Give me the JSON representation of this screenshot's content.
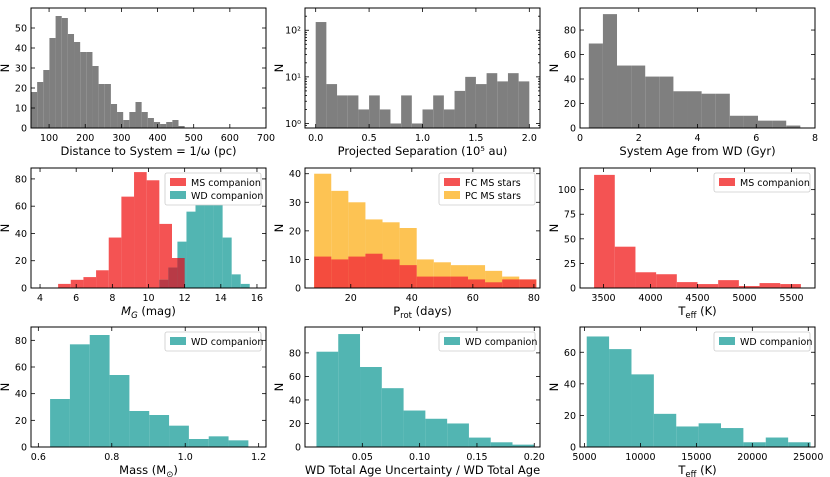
{
  "colors": {
    "gray": "#7f7f7f",
    "ms": "#f23b3b",
    "wd": "#3aaba7",
    "pc": "#fdbb3b",
    "overlap": "#b83a46"
  },
  "chart_data": [
    {
      "type": "bar",
      "xlabel": "Distance to System = 1/ω (pc)",
      "ylabel": "N",
      "xlim": [
        50,
        700
      ],
      "ylim": [
        0,
        60
      ],
      "xticks": [
        100,
        200,
        300,
        400,
        500,
        600,
        700
      ],
      "yticks": [
        0,
        10,
        20,
        30,
        40,
        50
      ],
      "yscale": "linear",
      "series": [
        {
          "color_key": "gray",
          "bin_edges": [
            50,
            67,
            84,
            101,
            118,
            135,
            152,
            169,
            186,
            203,
            220,
            237,
            254,
            271,
            288,
            305,
            322,
            339,
            356,
            373,
            390,
            407,
            424,
            441,
            458,
            475,
            492
          ],
          "values": [
            18,
            23,
            29,
            45,
            56,
            55,
            47,
            43,
            38,
            38,
            31,
            22,
            22,
            12,
            8,
            4,
            8,
            13,
            8,
            5,
            3,
            2,
            3,
            4,
            1,
            0
          ]
        }
      ],
      "legend": []
    },
    {
      "type": "bar",
      "xlabel": "Projected Separation (10⁵ au)",
      "ylabel": "N",
      "xlim": [
        -0.1,
        2.1
      ],
      "ylim": [
        0.8,
        300
      ],
      "xticks": [
        0.0,
        0.5,
        1.0,
        1.5,
        2.0
      ],
      "xtick_labels": [
        "0.0",
        "0.5",
        "1.0",
        "1.5",
        "2.0"
      ],
      "yticks": [
        1,
        10,
        100
      ],
      "ytick_labels": [
        "10⁰",
        "10¹",
        "10²"
      ],
      "yscale": "log",
      "series": [
        {
          "color_key": "gray",
          "bin_edges": [
            0.0,
            0.1,
            0.2,
            0.3,
            0.4,
            0.5,
            0.6,
            0.7,
            0.8,
            0.9,
            1.0,
            1.1,
            1.2,
            1.3,
            1.4,
            1.5,
            1.6,
            1.7,
            1.8,
            1.9,
            2.0
          ],
          "values": [
            150,
            7,
            4,
            4,
            2,
            4,
            2,
            1,
            4,
            1,
            2,
            4,
            2,
            5,
            10,
            7,
            12,
            8,
            12,
            8
          ]
        }
      ],
      "legend": []
    },
    {
      "type": "bar",
      "xlabel": "System Age from WD (Gyr)",
      "ylabel": "N",
      "xlim": [
        0,
        8
      ],
      "ylim": [
        0,
        98
      ],
      "xticks": [
        0,
        2,
        4,
        6,
        8
      ],
      "yticks": [
        0,
        20,
        40,
        60,
        80
      ],
      "yscale": "linear",
      "series": [
        {
          "color_key": "gray",
          "bin_edges": [
            0.3,
            0.78,
            1.26,
            1.74,
            2.22,
            2.7,
            3.18,
            3.66,
            4.14,
            4.62,
            5.1,
            5.58,
            6.06,
            6.54,
            7.02,
            7.5
          ],
          "values": [
            69,
            93,
            51,
            51,
            42,
            42,
            30,
            30,
            28,
            28,
            10,
            10,
            6,
            6,
            2
          ]
        }
      ],
      "legend": []
    },
    {
      "type": "bar",
      "xlabel": "M_G (mag)",
      "ylabel": "N",
      "xlim": [
        3.5,
        16.5
      ],
      "ylim": [
        0,
        88
      ],
      "xticks": [
        4,
        6,
        8,
        10,
        12,
        14,
        16
      ],
      "yticks": [
        0,
        20,
        40,
        60,
        80
      ],
      "yscale": "linear",
      "series": [
        {
          "name": "MS companion",
          "color_key": "ms",
          "bin_edges": [
            5.0,
            5.7,
            6.4,
            7.1,
            7.8,
            8.5,
            9.2,
            9.9,
            10.6,
            11.3,
            12.0
          ],
          "values": [
            3,
            6,
            8,
            13,
            37,
            67,
            85,
            79,
            47,
            22
          ]
        },
        {
          "name": "WD companion",
          "color_key": "wd",
          "bin_edges": [
            10.6,
            11.1,
            11.6,
            12.1,
            12.6,
            13.1,
            13.6,
            14.1,
            14.6,
            15.1,
            15.6
          ],
          "values": [
            6,
            15,
            34,
            56,
            62,
            70,
            74,
            37,
            10,
            3
          ]
        }
      ],
      "legend": [
        "MS companion",
        "WD companion"
      ]
    },
    {
      "type": "bar",
      "xlabel": "P_rot (days)",
      "ylabel": "N",
      "xlim": [
        5,
        82
      ],
      "ylim": [
        0,
        42
      ],
      "xticks": [
        20,
        40,
        60,
        80
      ],
      "yticks": [
        0,
        10,
        20,
        30,
        40
      ],
      "yscale": "linear",
      "series": [
        {
          "name": "PC MS stars",
          "color_key": "pc",
          "bin_edges": [
            8.0,
            13.6,
            19.2,
            24.8,
            30.4,
            36.0,
            41.6,
            47.2,
            52.8,
            58.4,
            64.0,
            69.6,
            75.2,
            80.8
          ],
          "values": [
            40,
            34,
            30,
            24,
            23,
            21,
            10,
            9,
            8,
            8,
            6,
            4,
            3
          ]
        },
        {
          "name": "FC MS stars",
          "color_key": "ms",
          "bin_edges": [
            8.0,
            13.6,
            19.2,
            24.8,
            30.4,
            36.0,
            41.6,
            47.2,
            52.8,
            58.4,
            64.0,
            69.6,
            75.2,
            80.8
          ],
          "values": [
            11,
            10,
            11,
            12,
            10,
            8,
            4,
            4,
            4,
            3,
            2,
            3,
            3
          ]
        }
      ],
      "legend": [
        "FC MS stars",
        "PC MS stars"
      ]
    },
    {
      "type": "bar",
      "xlabel": "T_eff (K)",
      "ylabel": "N",
      "xlim": [
        3250,
        5750
      ],
      "ylim": [
        0,
        122
      ],
      "xticks": [
        3500,
        4000,
        4500,
        5000,
        5500
      ],
      "yticks": [
        0,
        25,
        50,
        75,
        100
      ],
      "yscale": "linear",
      "series": [
        {
          "name": "MS companion",
          "color_key": "ms",
          "bin_edges": [
            3400,
            3620,
            3840,
            4060,
            4280,
            4500,
            4720,
            4940,
            5160,
            5380,
            5600
          ],
          "values": [
            115,
            42,
            16,
            14,
            6,
            4,
            8,
            2,
            5,
            4
          ]
        }
      ],
      "legend": [
        "MS companion"
      ]
    },
    {
      "type": "bar",
      "xlabel": "Mass (M⊙)",
      "ylabel": "N",
      "xlim": [
        0.58,
        1.22
      ],
      "ylim": [
        0,
        90
      ],
      "xticks": [
        0.6,
        0.8,
        1.0,
        1.2
      ],
      "xtick_labels": [
        "0.6",
        "0.8",
        "1.0",
        "1.2"
      ],
      "yticks": [
        0,
        20,
        40,
        60,
        80
      ],
      "yscale": "linear",
      "series": [
        {
          "name": "WD companion",
          "color_key": "wd",
          "bin_edges": [
            0.632,
            0.686,
            0.74,
            0.794,
            0.848,
            0.902,
            0.956,
            1.01,
            1.064,
            1.118,
            1.172
          ],
          "values": [
            36,
            77,
            84,
            54,
            27,
            24,
            16,
            6,
            8,
            5
          ]
        }
      ],
      "legend": [
        "WD companion"
      ]
    },
    {
      "type": "bar",
      "xlabel": "WD Total Age Uncertainty / WD Total Age",
      "ylabel": "N",
      "xlim": [
        0.0,
        0.205
      ],
      "ylim": [
        0,
        102
      ],
      "xticks": [
        0.05,
        0.1,
        0.15,
        0.2
      ],
      "xtick_labels": [
        "0.05",
        "0.10",
        "0.15",
        "0.20"
      ],
      "yticks": [
        0,
        20,
        40,
        60,
        80
      ],
      "yscale": "linear",
      "series": [
        {
          "name": "WD companion",
          "color_key": "wd",
          "bin_edges": [
            0.01,
            0.029,
            0.048,
            0.067,
            0.086,
            0.105,
            0.124,
            0.143,
            0.162,
            0.181,
            0.2
          ],
          "values": [
            81,
            96,
            68,
            50,
            31,
            24,
            20,
            8,
            4,
            2
          ]
        }
      ],
      "legend": [
        "WD companion"
      ]
    },
    {
      "type": "bar",
      "xlabel": "T_eff (K)",
      "ylabel": "N",
      "xlim": [
        4600,
        25600
      ],
      "ylim": [
        0,
        76
      ],
      "xticks": [
        5000,
        10000,
        15000,
        20000,
        25000
      ],
      "yticks": [
        0,
        20,
        40,
        60
      ],
      "yscale": "linear",
      "series": [
        {
          "name": "WD companion",
          "color_key": "wd",
          "bin_edges": [
            5200,
            7200,
            9200,
            11200,
            13200,
            15200,
            17200,
            19200,
            21200,
            23200,
            25200
          ],
          "values": [
            70,
            62,
            46,
            21,
            13,
            15,
            12,
            3,
            6,
            3
          ]
        }
      ],
      "legend": [
        "WD companion"
      ]
    }
  ]
}
